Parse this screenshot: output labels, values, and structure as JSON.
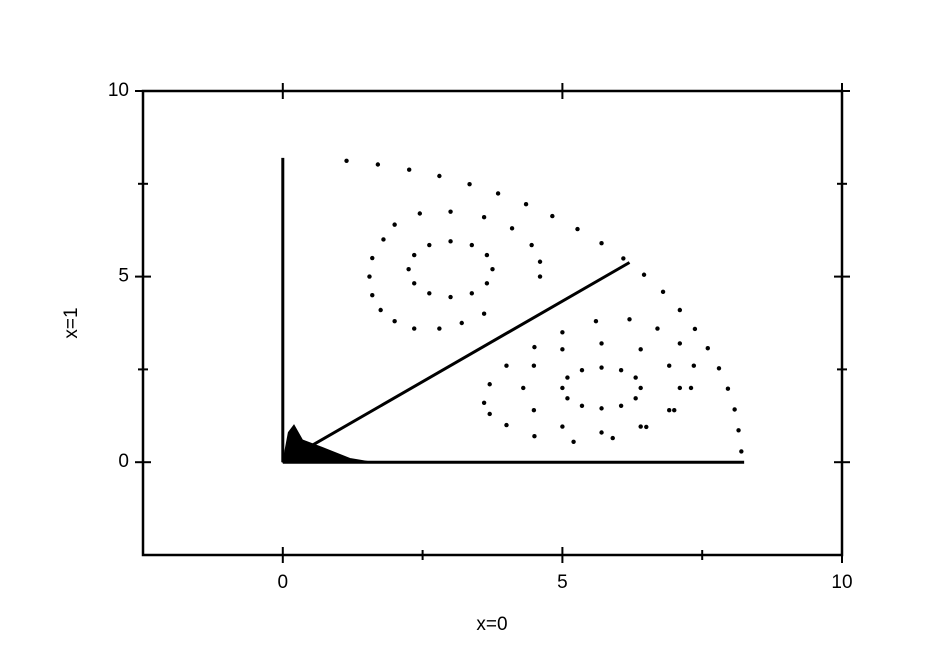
{
  "chart_data": {
    "type": "scatter",
    "xlabel": "x=0",
    "ylabel": "x=1",
    "xlim": [
      -2.5,
      10
    ],
    "ylim": [
      -2.5,
      10
    ],
    "xticks": [
      0,
      5,
      10
    ],
    "yticks": [
      0,
      5,
      10
    ],
    "xminor": [
      2.5,
      7.5
    ],
    "yminor": [
      2.5,
      7.5
    ],
    "series": [
      {
        "style": "line",
        "color": "#000000",
        "x": [
          0,
          0
        ],
        "values": [
          0,
          8.2
        ]
      },
      {
        "style": "line",
        "color": "#000000",
        "x": [
          0,
          8.25
        ],
        "values": [
          0,
          0
        ]
      },
      {
        "style": "line",
        "color": "#000000",
        "x": [
          0,
          6.2
        ],
        "values": [
          0,
          5.38
        ]
      },
      {
        "style": "fill",
        "color": "#000000",
        "x": [
          0,
          0.1,
          0.2,
          0.35,
          0.7,
          1.2,
          1.6
        ],
        "values": [
          0,
          0.8,
          1.0,
          0.6,
          0.4,
          0.1,
          0
        ]
      },
      {
        "style": "dots",
        "color": "#000000",
        "x": [
          1.14,
          1.7,
          2.26,
          2.8,
          3.34,
          3.85,
          4.35,
          4.82,
          5.27,
          5.7,
          6.09,
          6.46,
          6.8,
          7.1,
          7.37,
          7.6,
          7.8,
          7.96,
          8.08,
          8.15,
          8.2
        ],
        "values": [
          8.12,
          8.02,
          7.88,
          7.71,
          7.49,
          7.24,
          6.95,
          6.63,
          6.28,
          5.9,
          5.49,
          5.05,
          4.59,
          4.1,
          3.59,
          3.07,
          2.53,
          1.98,
          1.42,
          0.86,
          0.29
        ]
      },
      {
        "style": "dots",
        "color": "#000000",
        "x": [
          4.6,
          4.6,
          4.45,
          4.1,
          3.6,
          3.0,
          2.45,
          2.0,
          1.8,
          1.6,
          1.55,
          1.6,
          1.75,
          2.0,
          2.35,
          2.8,
          3.2,
          3.6
        ],
        "values": [
          5.0,
          5.4,
          5.85,
          6.3,
          6.6,
          6.75,
          6.7,
          6.4,
          6.0,
          5.5,
          5.0,
          4.5,
          4.1,
          3.8,
          3.6,
          3.6,
          3.75,
          4.0
        ]
      },
      {
        "style": "dots",
        "color": "#000000",
        "x": [
          3.75,
          3.65,
          3.38,
          3.0,
          2.62,
          2.35,
          2.25,
          2.35,
          2.62,
          3.0,
          3.38,
          3.65
        ],
        "values": [
          5.2,
          5.58,
          5.85,
          5.95,
          5.85,
          5.58,
          5.2,
          4.82,
          4.55,
          4.45,
          4.55,
          4.82
        ]
      },
      {
        "style": "dots",
        "color": "#000000",
        "x": [
          3.6,
          3.7,
          4.0,
          4.5,
          5.0,
          5.6,
          6.2,
          6.7,
          7.1,
          7.35,
          7.3,
          7.0,
          6.5,
          5.9,
          5.2,
          4.5,
          4.0,
          3.7
        ],
        "values": [
          1.6,
          2.1,
          2.6,
          3.1,
          3.5,
          3.8,
          3.85,
          3.6,
          3.2,
          2.6,
          2.0,
          1.4,
          0.95,
          0.65,
          0.55,
          0.7,
          1.0,
          1.3
        ]
      },
      {
        "style": "dots",
        "color": "#000000",
        "x": [
          7.1,
          6.91,
          6.4,
          5.7,
          5.0,
          4.49,
          4.3,
          4.49,
          5.0,
          5.7,
          6.4,
          6.91
        ],
        "values": [
          2.0,
          2.6,
          3.04,
          3.2,
          3.04,
          2.6,
          2.0,
          1.4,
          0.96,
          0.8,
          0.96,
          1.4
        ]
      },
      {
        "style": "dots",
        "color": "#000000",
        "x": [
          6.4,
          6.31,
          6.05,
          5.7,
          5.35,
          5.09,
          5.0,
          5.09,
          5.35,
          5.7,
          6.05,
          6.31
        ],
        "values": [
          2.0,
          2.28,
          2.48,
          2.55,
          2.48,
          2.28,
          2.0,
          1.72,
          1.52,
          1.45,
          1.52,
          1.72
        ]
      }
    ]
  }
}
